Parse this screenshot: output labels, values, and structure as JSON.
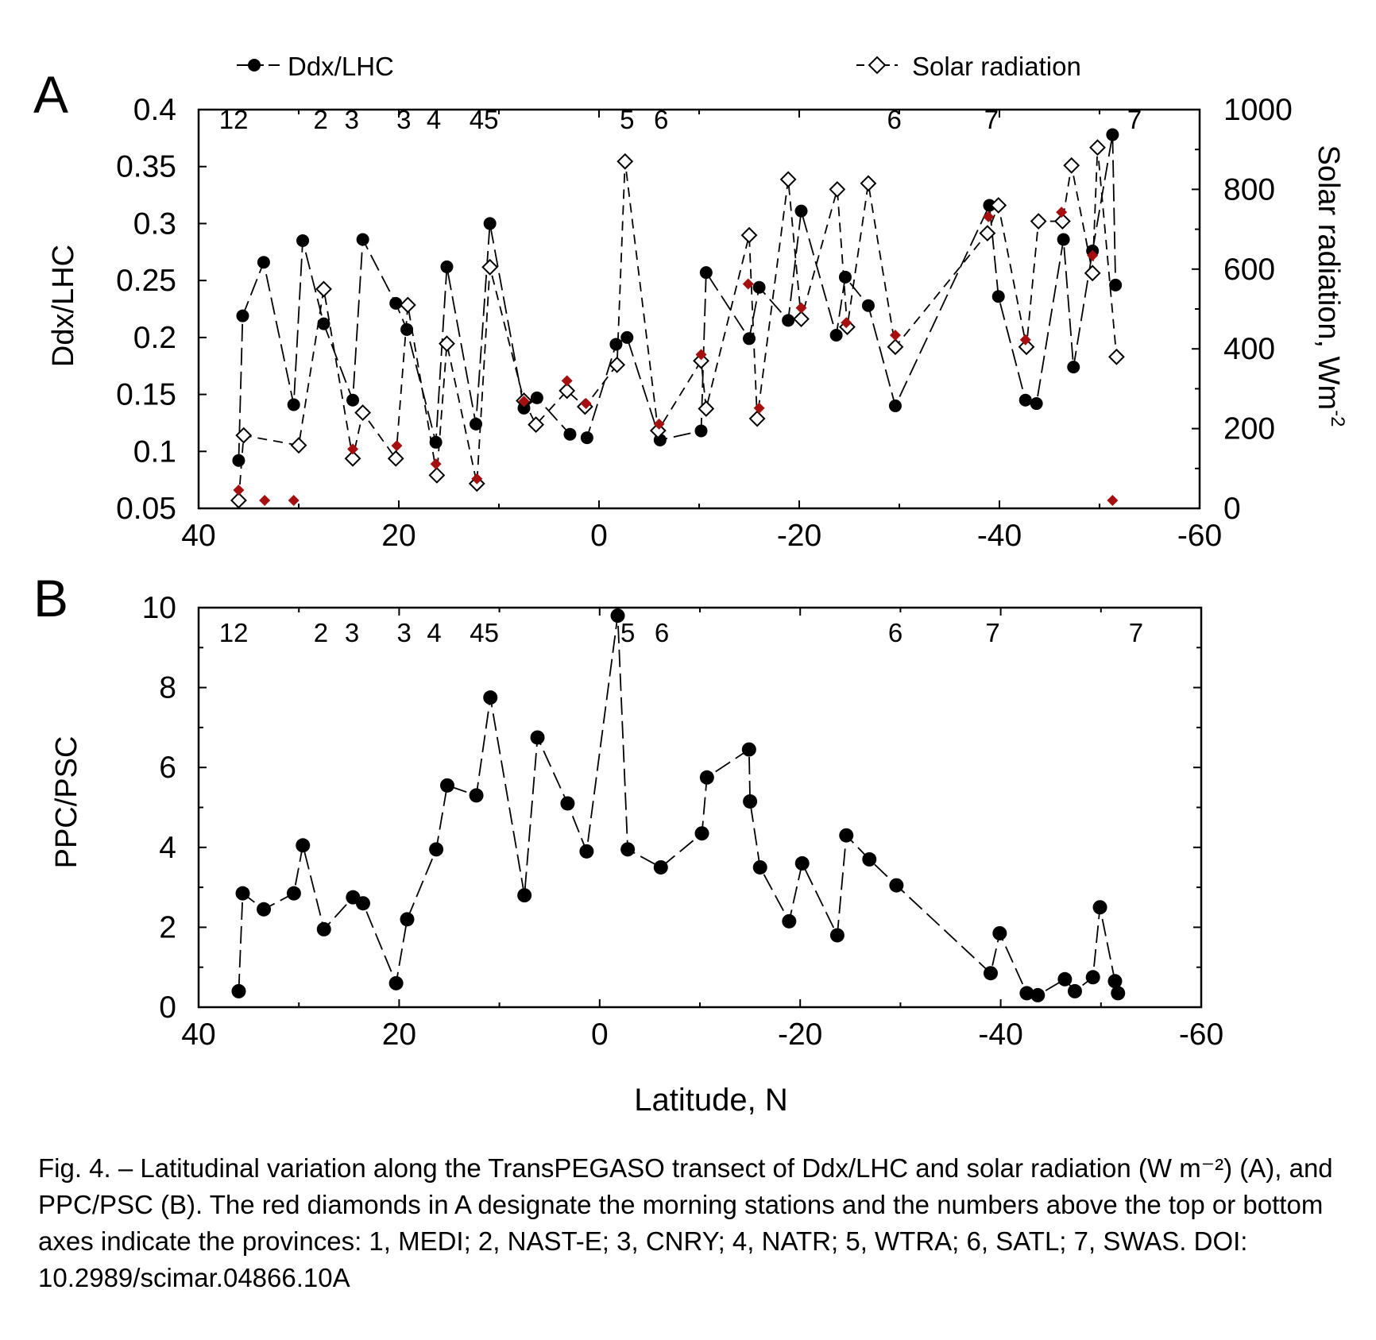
{
  "chart_data": [
    {
      "panel": "A",
      "type": "line",
      "xlabel": "",
      "ylabel": "Ddx/LHC",
      "ylabel_right": "Solar radiation, Wm",
      "ylabel_right_sup": "-2",
      "xlim": [
        40,
        -60
      ],
      "ylim": [
        0.05,
        0.4
      ],
      "ylim_right": [
        0,
        1000
      ],
      "xticks": [
        40,
        20,
        0,
        -20,
        -40,
        -60
      ],
      "xtick_labels": [
        "40",
        "20",
        "0",
        "-20",
        "-40",
        "-60"
      ],
      "yticks": [
        0.05,
        0.1,
        0.15,
        0.2,
        0.25,
        0.3,
        0.35,
        0.4
      ],
      "ytick_labels": [
        "0.05",
        "0.1",
        "0.15",
        "0.2",
        "0.25",
        "0.3",
        "0.35",
        "0.4"
      ],
      "yticks_right": [
        0,
        200,
        400,
        600,
        800,
        1000
      ],
      "ytick_right_labels": [
        "0",
        "200",
        "400",
        "600",
        "800",
        "1000"
      ],
      "legend": [
        {
          "label": "Ddx/LHC",
          "marker": "filled-circle"
        },
        {
          "label": "Solar radiation",
          "marker": "open-diamond"
        }
      ],
      "province_labels": [
        {
          "text": "12",
          "x": 36.5
        },
        {
          "text": "2",
          "x": 27.8
        },
        {
          "text": "3",
          "x": 24.7
        },
        {
          "text": "3",
          "x": 19.5
        },
        {
          "text": "4",
          "x": 16.5
        },
        {
          "text": "45",
          "x": 11.5
        },
        {
          "text": "5",
          "x": -2.8
        },
        {
          "text": "6",
          "x": -6.2
        },
        {
          "text": "6",
          "x": -29.5
        },
        {
          "text": "7",
          "x": -39.2
        },
        {
          "text": "7",
          "x": -53.5
        }
      ],
      "series": [
        {
          "name": "Ddx/LHC",
          "axis": "left",
          "style": "long-dash",
          "marker": "filled-circle",
          "x": [
            36,
            35.6,
            33.5,
            30.5,
            29.6,
            27.5,
            24.6,
            23.6,
            20.3,
            19.2,
            16.3,
            15.2,
            12.3,
            10.9,
            7.5,
            6.2,
            2.9,
            1.2,
            -1.7,
            -2.8,
            -6.1,
            -10.2,
            -10.7,
            -15,
            -16,
            -18.9,
            -20.2,
            -23.7,
            -24.6,
            -26.9,
            -29.6,
            -39,
            -39.9,
            -42.6,
            -43.7,
            -46.4,
            -47.4,
            -49.3,
            -51.3,
            -51.6
          ],
          "y": [
            0.092,
            0.219,
            0.266,
            0.141,
            0.285,
            0.212,
            0.145,
            0.286,
            0.23,
            0.207,
            0.108,
            0.262,
            0.124,
            0.3,
            0.138,
            0.147,
            0.115,
            0.112,
            0.194,
            0.2,
            0.11,
            0.118,
            0.257,
            0.199,
            0.244,
            0.215,
            0.311,
            0.202,
            0.253,
            0.228,
            0.14,
            0.316,
            0.236,
            0.145,
            0.142,
            0.286,
            0.174,
            0.276,
            0.378,
            0.246
          ]
        },
        {
          "name": "Solar radiation",
          "axis": "right",
          "style": "medium-dash",
          "marker": "open-diamond",
          "x": [
            36,
            35.5,
            30,
            27.5,
            24.6,
            23.6,
            20.3,
            19.1,
            16.2,
            15.2,
            12.2,
            10.9,
            7.5,
            6.3,
            3.2,
            1.4,
            -1.8,
            -2.6,
            -5.9,
            -10.2,
            -10.7,
            -15,
            -15.8,
            -18.9,
            -20.2,
            -23.8,
            -24.8,
            -26.9,
            -29.6,
            -38.8,
            -39.9,
            -42.7,
            -43.9,
            -46.3,
            -47.2,
            -49.3,
            -49.8,
            -51.7
          ],
          "y": [
            20,
            183,
            158,
            550,
            125,
            240,
            125,
            510,
            83,
            413,
            62,
            605,
            270,
            210,
            295,
            255,
            360,
            870,
            195,
            370,
            250,
            685,
            225,
            825,
            475,
            800,
            455,
            815,
            405,
            690,
            760,
            405,
            720,
            720,
            860,
            590,
            905,
            380
          ]
        },
        {
          "name": "",
          "role": "morning stations",
          "axis": "left",
          "style": "none",
          "marker": "red-diamond",
          "color": "#a50f0f",
          "x": [
            36,
            33.4,
            30.5,
            24.6,
            20.2,
            16.3,
            12.2,
            7.5,
            3.2,
            1.3,
            -6,
            -10.2,
            -14.9,
            -16,
            -20.2,
            -24.7,
            -29.6,
            -38.9,
            -42.6,
            -46.2,
            -49.3,
            -51.3
          ],
          "y": [
            0.066,
            0.057,
            0.057,
            0.102,
            0.105,
            0.089,
            0.076,
            0.144,
            0.162,
            0.142,
            0.124,
            0.185,
            0.247,
            0.138,
            0.226,
            0.213,
            0.202,
            0.306,
            0.198,
            0.31,
            0.272,
            0.057
          ]
        }
      ]
    },
    {
      "panel": "B",
      "type": "line",
      "xlabel": "Latitude, N",
      "ylabel": "PPC/PSC",
      "xlim": [
        40,
        -60
      ],
      "ylim": [
        0,
        10
      ],
      "xticks": [
        40,
        20,
        0,
        -20,
        -40,
        -60
      ],
      "xtick_labels": [
        "40",
        "20",
        "0",
        "-20",
        "-40",
        "-60"
      ],
      "yticks": [
        0,
        2,
        4,
        6,
        8,
        10
      ],
      "ytick_labels": [
        "0",
        "2",
        "4",
        "6",
        "8",
        "10"
      ],
      "province_labels": [
        {
          "text": "12",
          "x": 36.5
        },
        {
          "text": "2",
          "x": 27.8
        },
        {
          "text": "3",
          "x": 24.7
        },
        {
          "text": "3",
          "x": 19.5
        },
        {
          "text": "4",
          "x": 16.5
        },
        {
          "text": "45",
          "x": 11.5
        },
        {
          "text": "5",
          "x": -2.8
        },
        {
          "text": "6",
          "x": -6.2
        },
        {
          "text": "6",
          "x": -29.5
        },
        {
          "text": "7",
          "x": -39.2
        },
        {
          "text": "7",
          "x": -53.5
        }
      ],
      "series": [
        {
          "name": "PPC/PSC",
          "style": "long-dash",
          "marker": "filled-circle",
          "x": [
            36,
            35.6,
            33.5,
            30.5,
            29.6,
            27.5,
            24.6,
            23.6,
            20.3,
            19.2,
            16.3,
            15.2,
            12.3,
            10.9,
            7.5,
            6.2,
            3.2,
            1.3,
            -1.8,
            -2.8,
            -6.1,
            -10.2,
            -10.7,
            -14.9,
            -15,
            -16,
            -18.9,
            -20.2,
            -23.7,
            -24.6,
            -26.9,
            -29.6,
            -39,
            -39.9,
            -42.6,
            -43.7,
            -46.4,
            -47.4,
            -49.2,
            -49.9,
            -51.4,
            -51.7
          ],
          "y": [
            0.4,
            2.85,
            2.45,
            2.85,
            4.05,
            1.95,
            2.75,
            2.6,
            0.6,
            2.2,
            3.95,
            5.55,
            5.3,
            7.75,
            2.8,
            6.75,
            5.1,
            3.9,
            9.8,
            3.95,
            3.5,
            4.35,
            5.75,
            6.45,
            5.15,
            3.5,
            2.15,
            3.6,
            1.8,
            4.3,
            3.7,
            3.05,
            0.85,
            1.85,
            0.35,
            0.3,
            0.7,
            0.4,
            0.75,
            2.5,
            0.65,
            0.35
          ]
        }
      ]
    }
  ],
  "panel_a_label": "A",
  "panel_b_label": "B",
  "caption": "Fig. 4. – Latitudinal variation along the TransPEGASO transect of Ddx/LHC and solar radiation (W m⁻²) (A), and PPC/PSC (B). The red diamonds in A designate the morning stations and the numbers above the top or bottom axes indicate the provinces: 1, MEDI; 2, NAST-E; 3, CNRY; 4, NATR; 5, WTRA; 6, SATL; 7, SWAS. DOI: 10.2989/scimar.04866.10A",
  "colors": {
    "ink": "#000000",
    "morning": "#a50f0f",
    "background": "#ffffff"
  }
}
